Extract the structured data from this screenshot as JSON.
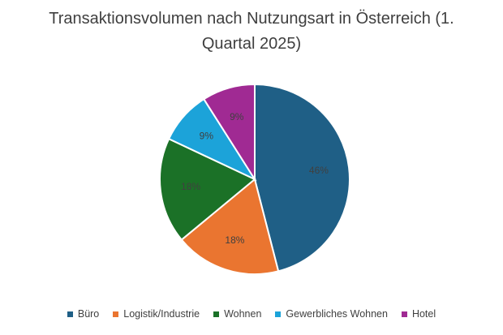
{
  "chart_data": {
    "type": "pie",
    "title": "Transaktionsvolumen nach Nutzungsart in Österreich (1. Quartal 2025)",
    "legend_position": "bottom",
    "slices": [
      {
        "name": "Büro",
        "value": 46,
        "label": "46%",
        "color": "#1F5F86"
      },
      {
        "name": "Logistik/Industrie",
        "value": 18,
        "label": "18%",
        "color": "#EA7530"
      },
      {
        "name": "Wohnen",
        "value": 18,
        "label": "18%",
        "color": "#1B7127"
      },
      {
        "name": "Gewerbliches Wohnen",
        "value": 9,
        "label": "9%",
        "color": "#1CA3D9"
      },
      {
        "name": "Hotel",
        "value": 9,
        "label": "9%",
        "color": "#A02A93"
      }
    ]
  }
}
